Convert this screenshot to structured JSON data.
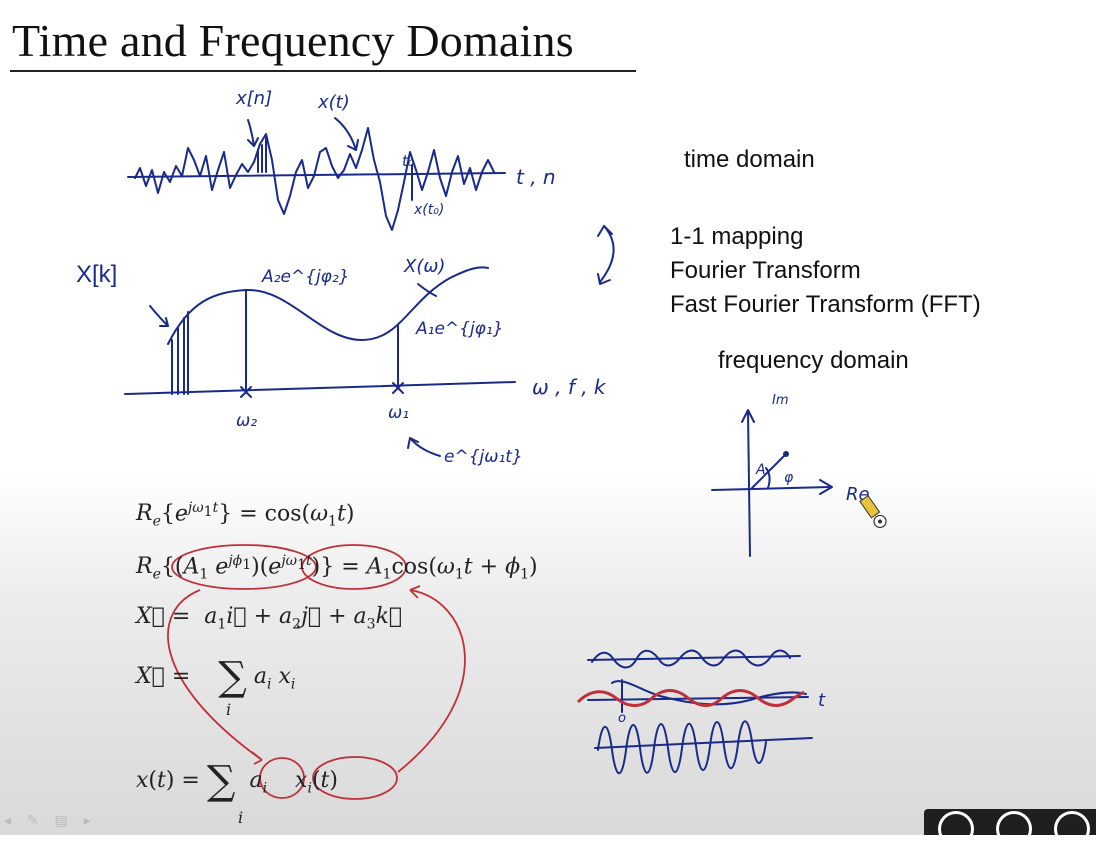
{
  "slide": {
    "title": "Time and Frequency Domains"
  },
  "right_labels": {
    "time_domain": "time domain",
    "mapping": "1-1 mapping",
    "fourier": "Fourier Transform",
    "fft": "Fast Fourier Transform (FFT)",
    "frequency_domain": "frequency domain"
  },
  "handwritten": {
    "x_n": "x[n]",
    "x_t": "x(t)",
    "t0": "t₀",
    "x_t0": "x(t₀)",
    "t_n_axis": "t , n",
    "X_k": "X[k]",
    "A2_e_phi2": "A₂e^{jφ₂}",
    "X_omega": "X(ω)",
    "A1_e_phi1": "A₁e^{jφ₁}",
    "omega_axis": "ω , f , k",
    "omega2": "ω₂",
    "omega1": "ω₁",
    "e_jw1t": "e^{jω₁t}",
    "im": "Im",
    "re": "Re",
    "A": "A",
    "phi": "φ",
    "t_axis": "t",
    "zero": "o"
  },
  "colors": {
    "ink_blue": "#1a2a8a",
    "ink_red": "#c0303a"
  }
}
